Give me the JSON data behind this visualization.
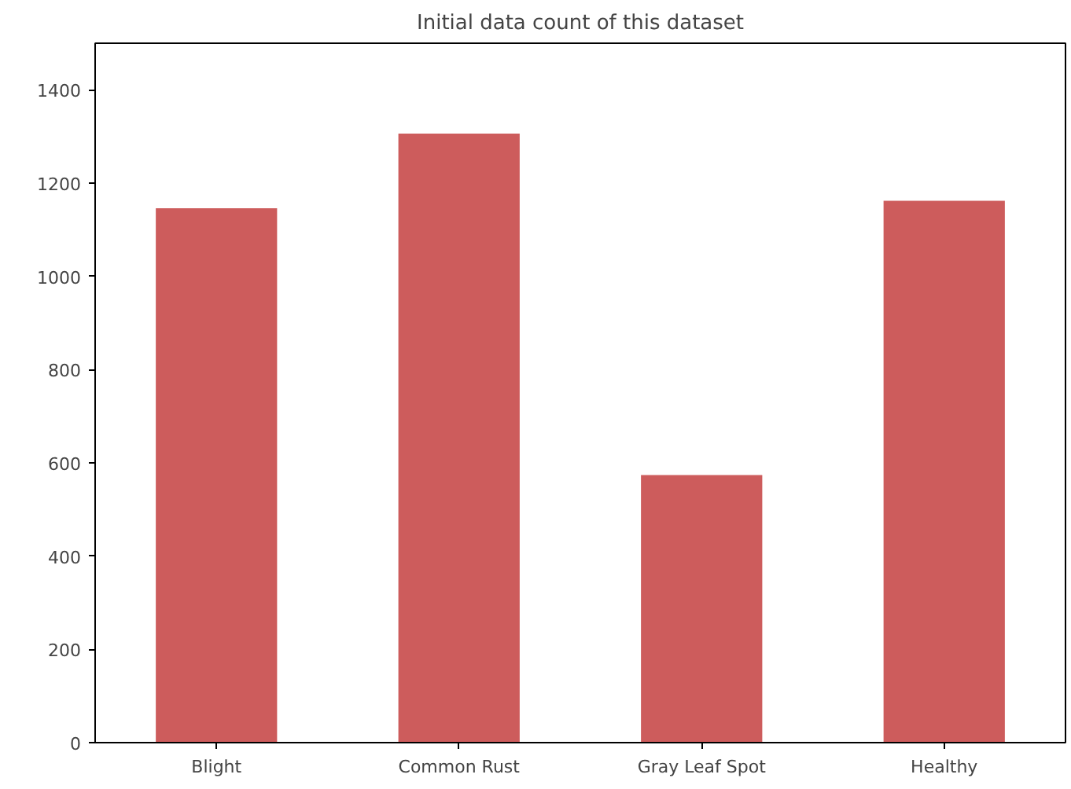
{
  "chart_data": {
    "type": "bar",
    "title": "Initial data count of this dataset",
    "categories": [
      "Blight",
      "Common Rust",
      "Gray Leaf Spot",
      "Healthy"
    ],
    "values": [
      1146,
      1306,
      574,
      1162
    ],
    "color": "#cd5c5c",
    "ylim": [
      0,
      1500
    ],
    "yticks": [
      0,
      200,
      400,
      600,
      800,
      1000,
      1200,
      1400
    ],
    "grid": false
  }
}
